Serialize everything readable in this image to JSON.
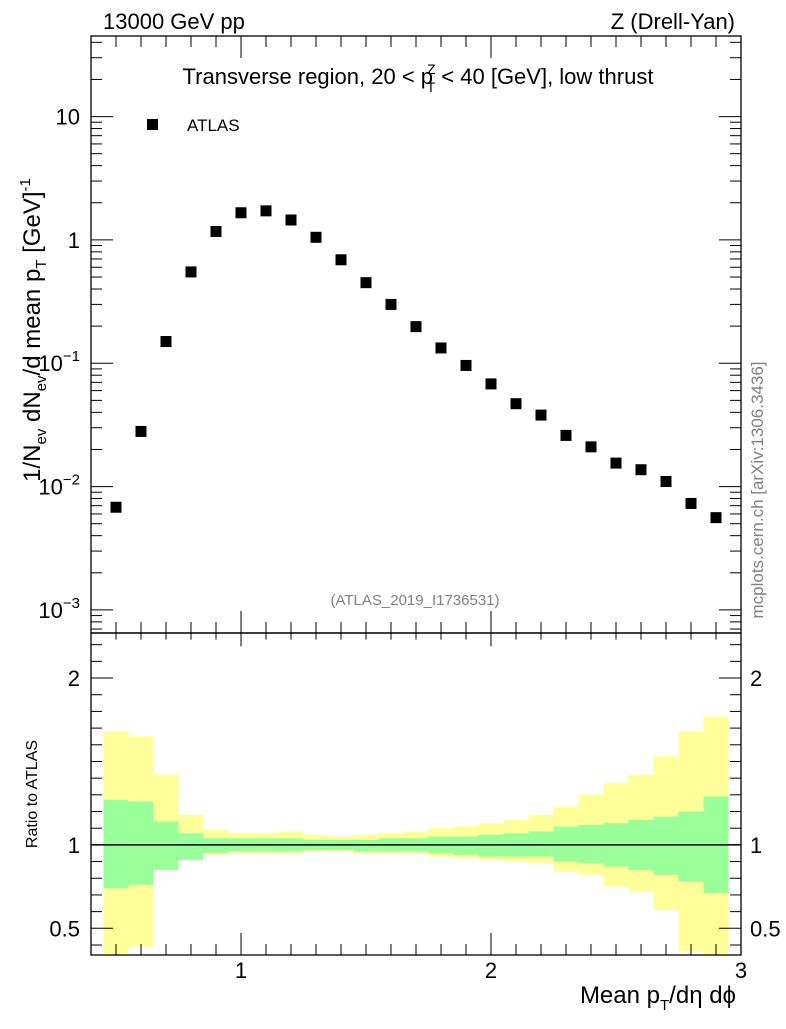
{
  "header": {
    "left": "13000 GeV pp",
    "right": "Z (Drell-Yan)"
  },
  "chart_data": [
    {
      "type": "scatter",
      "panel": "main",
      "title": "Transverse region, 20 < p_T^Z < 40 [GeV], low thrust",
      "title_parts": {
        "prefix": "Transverse region, 20 < p",
        "sup": "Z",
        "sub": "T",
        "suffix": " < 40 [GeV], low thrust"
      },
      "ylabel": "1/N_ev dN_ev/d mean p_T [GeV]^-1",
      "yscale": "log",
      "ylim": [
        0.00065,
        45
      ],
      "xlim": [
        0.4,
        3.0
      ],
      "y_tick_labels": [
        {
          "value": 0.001,
          "base": "10",
          "exp": "−3"
        },
        {
          "value": 0.01,
          "base": "10",
          "exp": "−2"
        },
        {
          "value": 0.1,
          "base": "10",
          "exp": "−1"
        },
        {
          "value": 1,
          "text": "1"
        },
        {
          "value": 10,
          "text": "10"
        }
      ],
      "legend": {
        "entries": [
          "ATLAS"
        ],
        "position": "top-left"
      },
      "annotation": "(ATLAS_2019_I1736531)",
      "series": [
        {
          "name": "ATLAS",
          "marker": "square",
          "color": "#000000",
          "x": [
            0.5,
            0.6,
            0.7,
            0.8,
            0.9,
            1.0,
            1.1,
            1.2,
            1.3,
            1.4,
            1.5,
            1.6,
            1.7,
            1.8,
            1.9,
            2.0,
            2.1,
            2.2,
            2.3,
            2.4,
            2.5,
            2.6,
            2.7,
            2.8,
            2.9
          ],
          "y": [
            0.0068,
            0.028,
            0.15,
            0.55,
            1.17,
            1.66,
            1.72,
            1.45,
            1.05,
            0.69,
            0.45,
            0.3,
            0.198,
            0.133,
            0.096,
            0.068,
            0.047,
            0.038,
            0.026,
            0.021,
            0.0155,
            0.0137,
            0.011,
            0.0073,
            0.0056
          ]
        }
      ]
    },
    {
      "type": "area",
      "panel": "ratio",
      "ylabel": "Ratio to ATLAS",
      "xlabel": "Mean p_T/dη dϕ",
      "xlabel_parts": {
        "prefix": "Mean p",
        "sub": "T",
        "suffix": "/dη dϕ"
      },
      "xlim": [
        0.4,
        3.0
      ],
      "ylim": [
        0.34,
        2.27
      ],
      "x_ticks": [
        1,
        2,
        3
      ],
      "x_tick_labels": [
        "1",
        "2",
        "3"
      ],
      "y_ticks": [
        0.5,
        1,
        2
      ],
      "y_tick_labels": [
        "0.5",
        "1",
        "2"
      ],
      "reference_line": 1,
      "bin_edges": [
        0.45,
        0.55,
        0.65,
        0.75,
        0.85,
        0.95,
        1.05,
        1.15,
        1.25,
        1.35,
        1.45,
        1.55,
        1.65,
        1.75,
        1.85,
        1.95,
        2.05,
        2.15,
        2.25,
        2.35,
        2.45,
        2.55,
        2.65,
        2.75,
        2.85,
        2.95
      ],
      "bands": [
        {
          "name": "total uncertainty",
          "color": "#ffff99",
          "low": [
            0.34,
            0.39,
            0.89,
            0.93,
            0.94,
            0.95,
            0.95,
            0.95,
            0.96,
            0.96,
            0.95,
            0.95,
            0.95,
            0.93,
            0.92,
            0.91,
            0.9,
            0.89,
            0.84,
            0.82,
            0.75,
            0.72,
            0.61,
            0.36,
            0.34
          ],
          "high": [
            1.68,
            1.65,
            1.42,
            1.18,
            1.09,
            1.07,
            1.07,
            1.08,
            1.06,
            1.05,
            1.06,
            1.07,
            1.08,
            1.1,
            1.11,
            1.13,
            1.15,
            1.18,
            1.23,
            1.3,
            1.37,
            1.42,
            1.53,
            1.68,
            1.77
          ]
        },
        {
          "name": "statistical uncertainty",
          "color": "#99ff99",
          "low": [
            0.74,
            0.76,
            0.85,
            0.91,
            0.95,
            0.96,
            0.96,
            0.96,
            0.97,
            0.97,
            0.96,
            0.96,
            0.96,
            0.95,
            0.94,
            0.93,
            0.93,
            0.93,
            0.9,
            0.89,
            0.87,
            0.85,
            0.82,
            0.78,
            0.71
          ],
          "high": [
            1.27,
            1.26,
            1.14,
            1.07,
            1.04,
            1.04,
            1.04,
            1.04,
            1.03,
            1.03,
            1.03,
            1.04,
            1.04,
            1.05,
            1.05,
            1.06,
            1.07,
            1.08,
            1.11,
            1.12,
            1.13,
            1.15,
            1.17,
            1.2,
            1.29
          ]
        }
      ]
    }
  ],
  "side_credit": "mcplots.cern.ch [arXiv:1306.3436]"
}
